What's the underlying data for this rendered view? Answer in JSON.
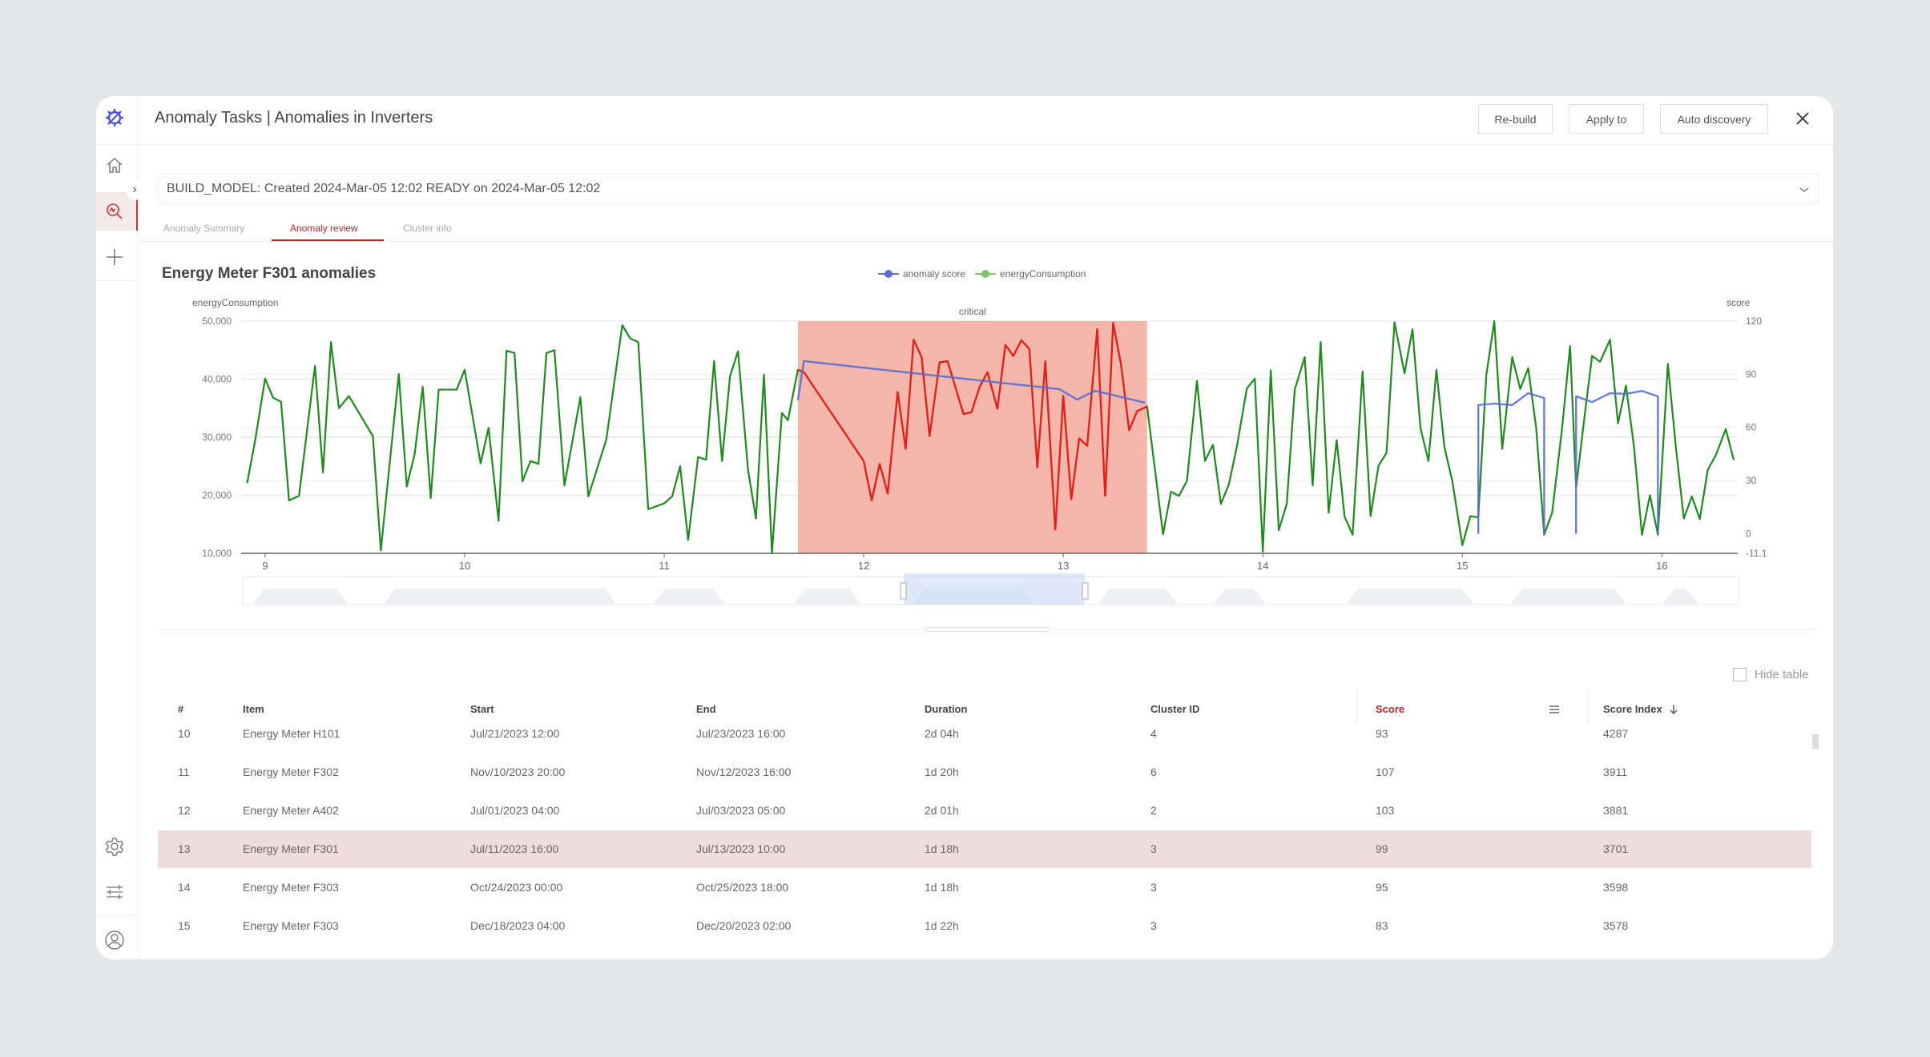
{
  "header": {
    "title": "Anomaly Tasks | Anomalies in Inverters",
    "buttons": {
      "rebuild": "Re-build",
      "apply_to": "Apply to",
      "auto_discovery": "Auto discovery"
    }
  },
  "sidebar": {
    "items": [
      "logo-icon",
      "home-icon",
      "anomaly-search-icon",
      "plus-icon",
      "gear-icon",
      "sliders-icon",
      "user-icon"
    ],
    "active": "anomaly-search-icon",
    "accent": "#c8323a"
  },
  "build_status": "BUILD_MODEL: Created 2024-Mar-05 12:02 READY on 2024-Mar-05 12:02",
  "tabs": [
    {
      "label": "Anomaly Summary",
      "active": false
    },
    {
      "label": "Anomaly review",
      "active": true
    },
    {
      "label": "Cluster info",
      "active": false
    }
  ],
  "chart_data": {
    "type": "line",
    "title": "Energy Meter F301 anomalies",
    "legend": [
      {
        "name": "anomaly score",
        "color": "#5b6fd0"
      },
      {
        "name": "energyConsumption",
        "color": "#7cc46a"
      }
    ],
    "legend_position": "top-center",
    "ylabel_left": "energyConsumption",
    "ylabel_right": "score",
    "x_ticks": [
      "9",
      "10",
      "11",
      "12",
      "13",
      "14",
      "15",
      "16"
    ],
    "xlim": [
      8.88,
      16.38
    ],
    "y_left_ticks": [
      "10,000",
      "20,000",
      "30,000",
      "40,000",
      "50,000"
    ],
    "ylim_left": [
      10000,
      50000
    ],
    "y_right_ticks": [
      "-11.1",
      "0",
      "30",
      "60",
      "90",
      "120"
    ],
    "ylim_right": [
      -11.1,
      120
    ],
    "grid": true,
    "band": {
      "label": "critical",
      "from": 11.67,
      "to": 13.42,
      "color": "#f4b6aa"
    },
    "colors": {
      "energy": "#1e8a1e",
      "energy_in_band": "#f01818",
      "score": "#5b6fd0"
    },
    "series": [
      {
        "name": "energyConsumption",
        "axis": "left",
        "points": [
          [
            8.91,
            22100
          ],
          [
            8.95,
            29400
          ],
          [
            9.0,
            40100
          ],
          [
            9.04,
            36800
          ],
          [
            9.08,
            36100
          ],
          [
            9.12,
            19100
          ],
          [
            9.17,
            19900
          ],
          [
            9.25,
            42300
          ],
          [
            9.29,
            23900
          ],
          [
            9.33,
            46400
          ],
          [
            9.37,
            35000
          ],
          [
            9.42,
            37100
          ],
          [
            9.54,
            30200
          ],
          [
            9.58,
            10500
          ],
          [
            9.67,
            40900
          ],
          [
            9.71,
            21500
          ],
          [
            9.75,
            27200
          ],
          [
            9.79,
            38700
          ],
          [
            9.83,
            19500
          ],
          [
            9.87,
            38200
          ],
          [
            9.96,
            38200
          ],
          [
            10.0,
            41600
          ],
          [
            10.08,
            25500
          ],
          [
            10.12,
            31600
          ],
          [
            10.17,
            15600
          ],
          [
            10.21,
            44900
          ],
          [
            10.25,
            44500
          ],
          [
            10.29,
            22400
          ],
          [
            10.33,
            25900
          ],
          [
            10.37,
            25400
          ],
          [
            10.41,
            44500
          ],
          [
            10.45,
            45000
          ],
          [
            10.5,
            21700
          ],
          [
            10.58,
            36900
          ],
          [
            10.62,
            19800
          ],
          [
            10.71,
            29600
          ],
          [
            10.79,
            49300
          ],
          [
            10.83,
            47000
          ],
          [
            10.87,
            46400
          ],
          [
            10.92,
            17600
          ],
          [
            11.0,
            18600
          ],
          [
            11.04,
            19800
          ],
          [
            11.08,
            25000
          ],
          [
            11.12,
            12300
          ],
          [
            11.17,
            26600
          ],
          [
            11.21,
            26100
          ],
          [
            11.25,
            43100
          ],
          [
            11.29,
            25900
          ],
          [
            11.33,
            40500
          ],
          [
            11.37,
            44800
          ],
          [
            11.42,
            24400
          ],
          [
            11.46,
            16000
          ],
          [
            11.5,
            40800
          ],
          [
            11.54,
            10000
          ],
          [
            11.59,
            34200
          ],
          [
            11.62,
            32900
          ],
          [
            11.67,
            41600
          ],
          [
            11.7,
            41200
          ],
          [
            12.0,
            25900
          ],
          [
            12.04,
            19100
          ],
          [
            12.08,
            25400
          ],
          [
            12.12,
            20300
          ],
          [
            12.17,
            37800
          ],
          [
            12.21,
            28000
          ],
          [
            12.25,
            46800
          ],
          [
            12.29,
            43800
          ],
          [
            12.33,
            30200
          ],
          [
            12.38,
            42900
          ],
          [
            12.42,
            43100
          ],
          [
            12.5,
            34000
          ],
          [
            12.54,
            34300
          ],
          [
            12.58,
            38600
          ],
          [
            12.62,
            41200
          ],
          [
            12.67,
            34900
          ],
          [
            12.71,
            45900
          ],
          [
            12.75,
            44000
          ],
          [
            12.79,
            46700
          ],
          [
            12.83,
            45200
          ],
          [
            12.87,
            24800
          ],
          [
            12.91,
            43100
          ],
          [
            12.96,
            14100
          ],
          [
            13.0,
            37100
          ],
          [
            13.04,
            19300
          ],
          [
            13.08,
            29800
          ],
          [
            13.12,
            28500
          ],
          [
            13.17,
            48600
          ],
          [
            13.21,
            19900
          ],
          [
            13.25,
            49700
          ],
          [
            13.29,
            42400
          ],
          [
            13.33,
            31200
          ],
          [
            13.37,
            34500
          ],
          [
            13.42,
            35300
          ],
          [
            13.5,
            13300
          ],
          [
            13.54,
            20600
          ],
          [
            13.58,
            19900
          ],
          [
            13.62,
            22500
          ],
          [
            13.67,
            39700
          ],
          [
            13.71,
            25900
          ],
          [
            13.75,
            28700
          ],
          [
            13.79,
            18500
          ],
          [
            13.83,
            21900
          ],
          [
            13.87,
            28400
          ],
          [
            13.92,
            38400
          ],
          [
            13.96,
            40100
          ],
          [
            14.0,
            10300
          ],
          [
            14.04,
            41500
          ],
          [
            14.08,
            14000
          ],
          [
            14.12,
            18500
          ],
          [
            14.16,
            38200
          ],
          [
            14.21,
            43800
          ],
          [
            14.25,
            21700
          ],
          [
            14.29,
            46400
          ],
          [
            14.33,
            17000
          ],
          [
            14.37,
            29500
          ],
          [
            14.41,
            16300
          ],
          [
            14.45,
            13200
          ],
          [
            14.5,
            41300
          ],
          [
            14.54,
            16400
          ],
          [
            14.58,
            25100
          ],
          [
            14.62,
            27300
          ],
          [
            14.66,
            49800
          ],
          [
            14.71,
            41000
          ],
          [
            14.75,
            48600
          ],
          [
            14.79,
            31600
          ],
          [
            14.83,
            25900
          ],
          [
            14.87,
            41600
          ],
          [
            14.91,
            28300
          ],
          [
            14.95,
            22400
          ],
          [
            15.0,
            11400
          ],
          [
            15.04,
            16400
          ],
          [
            15.08,
            16200
          ],
          [
            15.12,
            40700
          ],
          [
            15.16,
            50000
          ],
          [
            15.2,
            28000
          ],
          [
            15.25,
            43800
          ],
          [
            15.29,
            38300
          ],
          [
            15.33,
            41900
          ],
          [
            15.37,
            31600
          ],
          [
            15.41,
            13200
          ],
          [
            15.45,
            17000
          ],
          [
            15.5,
            31600
          ],
          [
            15.54,
            45700
          ],
          [
            15.57,
            21300
          ],
          [
            15.61,
            32900
          ],
          [
            15.65,
            44000
          ],
          [
            15.69,
            43000
          ],
          [
            15.74,
            46800
          ],
          [
            15.78,
            32400
          ],
          [
            15.82,
            38900
          ],
          [
            15.86,
            28400
          ],
          [
            15.9,
            13200
          ],
          [
            15.94,
            20000
          ],
          [
            15.98,
            13200
          ],
          [
            16.03,
            42600
          ],
          [
            16.07,
            28300
          ],
          [
            16.11,
            16000
          ],
          [
            16.15,
            19800
          ],
          [
            16.19,
            15900
          ],
          [
            16.23,
            24400
          ],
          [
            16.27,
            26900
          ],
          [
            16.32,
            31400
          ],
          [
            16.36,
            26100
          ]
        ]
      },
      {
        "name": "anomaly score",
        "axis": "right",
        "segments": [
          [
            [
              11.67,
              75.2
            ],
            [
              11.7,
              97.4
            ],
            [
              12.8,
              83.8
            ],
            [
              12.98,
              81.6
            ],
            [
              13.07,
              75.7
            ],
            [
              13.16,
              80.7
            ],
            [
              13.31,
              76.6
            ],
            [
              13.41,
              73.9
            ]
          ],
          [
            [
              15.08,
              0
            ],
            [
              15.08,
              72.6
            ],
            [
              15.16,
              73.4
            ],
            [
              15.25,
              72.6
            ],
            [
              15.33,
              79.3
            ],
            [
              15.41,
              76.6
            ],
            [
              15.41,
              0
            ]
          ],
          [
            [
              15.57,
              0
            ],
            [
              15.57,
              77.5
            ],
            [
              15.65,
              74.3
            ],
            [
              15.74,
              79.3
            ],
            [
              15.82,
              78.9
            ],
            [
              15.9,
              80.6
            ],
            [
              15.98,
              77.5
            ],
            [
              15.98,
              0
            ]
          ]
        ]
      }
    ]
  },
  "table": {
    "hide_label": "Hide table",
    "hide_checked": false,
    "columns": [
      "#",
      "Item",
      "Start",
      "End",
      "Duration",
      "Cluster ID",
      "Score",
      "Score Index"
    ],
    "sorted_column": "Score Index",
    "sort_direction": "descending",
    "selected_row": "13",
    "rows": [
      [
        "10",
        "Energy Meter H101",
        "Jul/21/2023 12:00",
        "Jul/23/2023 16:00",
        "2d 04h",
        "4",
        "93",
        "4287"
      ],
      [
        "11",
        "Energy Meter F302",
        "Nov/10/2023 20:00",
        "Nov/12/2023 16:00",
        "1d 20h",
        "6",
        "107",
        "3911"
      ],
      [
        "12",
        "Energy Meter A402",
        "Jul/01/2023 04:00",
        "Jul/03/2023 05:00",
        "2d 01h",
        "2",
        "103",
        "3881"
      ],
      [
        "13",
        "Energy Meter F301",
        "Jul/11/2023 16:00",
        "Jul/13/2023 10:00",
        "1d 18h",
        "3",
        "99",
        "3701"
      ],
      [
        "14",
        "Energy Meter F303",
        "Oct/24/2023 00:00",
        "Oct/25/2023 18:00",
        "1d 18h",
        "3",
        "95",
        "3598"
      ],
      [
        "15",
        "Energy Meter F303",
        "Dec/18/2023 04:00",
        "Dec/20/2023 02:00",
        "1d 22h",
        "3",
        "83",
        "3578"
      ]
    ]
  }
}
